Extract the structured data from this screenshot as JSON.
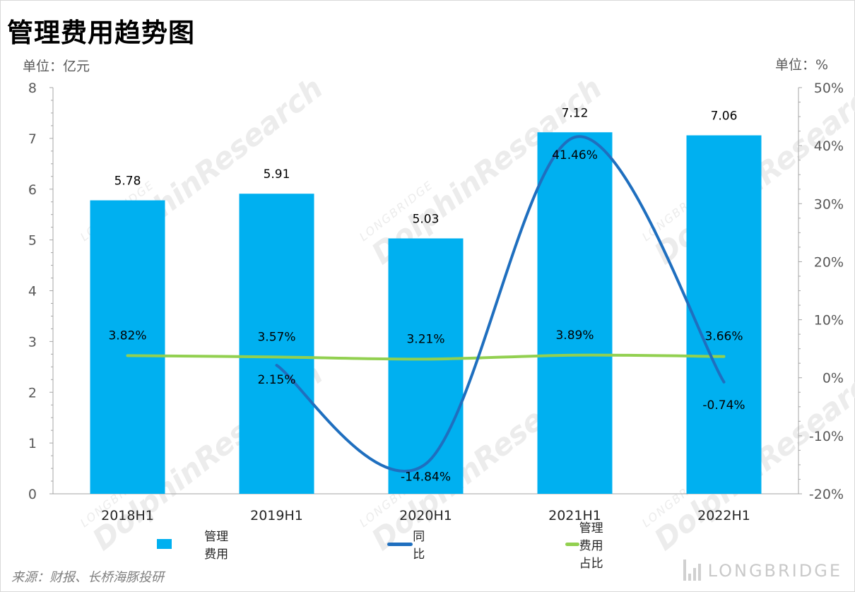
{
  "title": "管理费用趋势图",
  "unit_left": "单位：亿元",
  "unit_right": "单位：%",
  "source": "来源：财报、长桥海豚投研",
  "watermark": {
    "small": "LONGBRIDGE",
    "big": "DolphinResearch"
  },
  "brand": {
    "name": "LONGBRIDGE"
  },
  "colors": {
    "bar": "#00B0F0",
    "yoy": "#1F6FBF",
    "ratio": "#92D050",
    "axis": "#a6a6a6",
    "text": "#000000"
  },
  "legend": {
    "bar": "管理费用",
    "yoy": "同比",
    "ratio": "管理费用占比"
  },
  "chart_data": {
    "type": "bar",
    "categories": [
      "2018H1",
      "2019H1",
      "2020H1",
      "2021H1",
      "2022H1"
    ],
    "series": [
      {
        "name": "管理费用",
        "type": "bar",
        "axis": "left",
        "values": [
          5.78,
          5.91,
          5.03,
          7.12,
          7.06
        ],
        "labels": [
          "5.78",
          "5.91",
          "5.03",
          "7.12",
          "7.06"
        ]
      },
      {
        "name": "同比",
        "type": "line",
        "axis": "right",
        "values": [
          null,
          2.15,
          -14.84,
          41.46,
          -0.74
        ],
        "labels": [
          "",
          "2.15%",
          "-14.84%",
          "41.46%",
          "-0.74%"
        ]
      },
      {
        "name": "管理费用占比",
        "type": "line",
        "axis": "right",
        "values": [
          3.82,
          3.57,
          3.21,
          3.89,
          3.66
        ],
        "labels": [
          "3.82%",
          "3.57%",
          "3.21%",
          "3.89%",
          "3.66%"
        ]
      }
    ],
    "y_left": {
      "min": 0,
      "max": 8,
      "step": 1,
      "ticks": [
        "0",
        "1",
        "2",
        "3",
        "4",
        "5",
        "6",
        "7",
        "8"
      ]
    },
    "y_right": {
      "min": -20,
      "max": 50,
      "step": 10,
      "ticks": [
        "-20%",
        "-10%",
        "0%",
        "10%",
        "20%",
        "30%",
        "40%",
        "50%"
      ]
    },
    "grid": false,
    "legend_position": "bottom"
  }
}
